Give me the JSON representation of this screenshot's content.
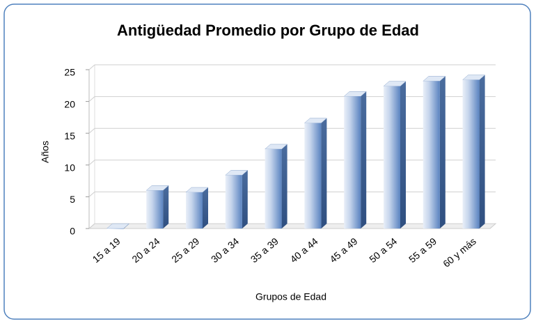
{
  "chart_data": {
    "type": "bar",
    "title": "Antigüedad Promedio por Grupo de Edad",
    "x_label": "Grupos de Edad",
    "y_label": "Años",
    "categories": [
      "15 a 19",
      "20 a 24",
      "25 a 29",
      "30 a 34",
      "35 a 39",
      "40 a 44",
      "45 a 49",
      "50 a 54",
      "55 a 59",
      "60 y más"
    ],
    "values": [
      0,
      6.0,
      5.7,
      8.4,
      12.5,
      16.6,
      20.8,
      22.4,
      23.2,
      23.4
    ],
    "color": "#4f81bd",
    "ylim": [
      0,
      25
    ],
    "yticks": [
      0,
      5,
      10,
      15,
      20,
      25
    ],
    "grid": true
  }
}
